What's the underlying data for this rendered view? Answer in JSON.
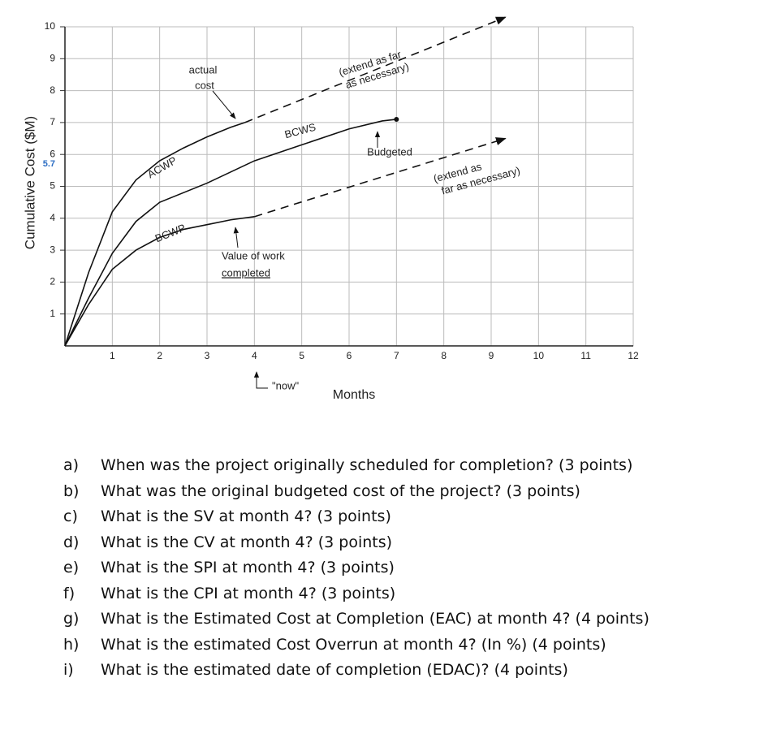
{
  "chart_data": {
    "type": "line",
    "y_label": "Cumulative Cost ($M)",
    "x_label": "Months",
    "xlim": [
      0,
      12
    ],
    "xticks": [
      1,
      2,
      3,
      4,
      5,
      6,
      7,
      8,
      9,
      10,
      11,
      12
    ],
    "ylim": [
      0,
      10
    ],
    "yticks": [
      1,
      2,
      3,
      4,
      5,
      6,
      7,
      8,
      9,
      10
    ],
    "highlight_ytick": 5.7,
    "highlight_color": "#2e6fc4",
    "grid": true,
    "series": [
      {
        "name": "ACWP",
        "color": "#111111",
        "x": [
          0,
          0.5,
          1,
          1.5,
          2,
          2.5,
          3,
          3.5,
          3.8
        ],
        "values": [
          0,
          2.3,
          4.2,
          5.2,
          5.8,
          6.2,
          6.55,
          6.85,
          7.0
        ]
      },
      {
        "color": "#111111",
        "dashed": true,
        "x": [
          3.8,
          9.3
        ],
        "values": [
          7.0,
          10.3
        ]
      },
      {
        "name": "BCWS",
        "color": "#111111",
        "x": [
          0,
          0.5,
          1,
          1.5,
          2,
          3,
          4,
          5,
          6,
          6.7,
          7
        ],
        "values": [
          0,
          1.5,
          2.9,
          3.9,
          4.5,
          5.1,
          5.8,
          6.3,
          6.8,
          7.05,
          7.1
        ]
      },
      {
        "name": "BCWP",
        "color": "#111111",
        "x": [
          0,
          0.5,
          1,
          1.5,
          2,
          2.5,
          3,
          3.5,
          4
        ],
        "values": [
          0,
          1.3,
          2.4,
          3.0,
          3.4,
          3.65,
          3.8,
          3.95,
          4.05
        ]
      },
      {
        "color": "#111111",
        "dashed": true,
        "x": [
          4,
          9.3
        ],
        "values": [
          4.05,
          6.5
        ]
      }
    ],
    "annotations": {
      "actual_cost": [
        "actual",
        "cost"
      ],
      "extend_top": [
        "(extend as far",
        "as necessary)"
      ],
      "budgeted": "Budgeted",
      "extend_bottom": [
        "(extend as",
        "far as necessary)"
      ],
      "value_of_work": [
        "Value of work",
        "completed"
      ],
      "now": "\"now\""
    }
  },
  "questions": [
    {
      "letter": "a)",
      "text": "When was the project originally scheduled for completion? (3 points)"
    },
    {
      "letter": "b)",
      "text": "What was the original budgeted cost of the project? (3 points)"
    },
    {
      "letter": "c)",
      "text": "What is the SV at month 4? (3 points)"
    },
    {
      "letter": "d)",
      "text": "What is the CV at month 4? (3 points)"
    },
    {
      "letter": "e)",
      "text": "What is the SPI at month 4? (3 points)"
    },
    {
      "letter": "f)",
      "text": "What is the CPI at month 4? (3 points)"
    },
    {
      "letter": "g)",
      "text": "What is the Estimated Cost at Completion (EAC) at month 4? (4 points)"
    },
    {
      "letter": "h)",
      "text": "What is the estimated Cost Overrun at month 4? (In %) (4 points)"
    },
    {
      "letter": "i)",
      "text": "What is the estimated date of completion (EDAC)? (4 points)"
    }
  ]
}
